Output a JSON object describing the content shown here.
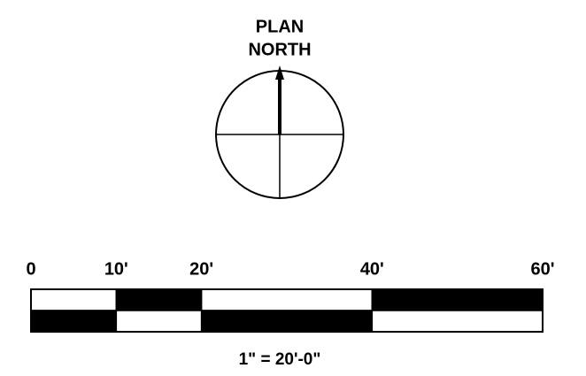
{
  "north_arrow": {
    "line1": "PLAN",
    "line2": "NORTH"
  },
  "scale_bar": {
    "ticks": [
      {
        "value": 0,
        "label": "0"
      },
      {
        "value": 10,
        "label": "10'"
      },
      {
        "value": 20,
        "label": "20'"
      },
      {
        "value": 40,
        "label": "40'"
      },
      {
        "value": 60,
        "label": "60'"
      }
    ],
    "scale_text": "1\" = 20'-0\""
  }
}
